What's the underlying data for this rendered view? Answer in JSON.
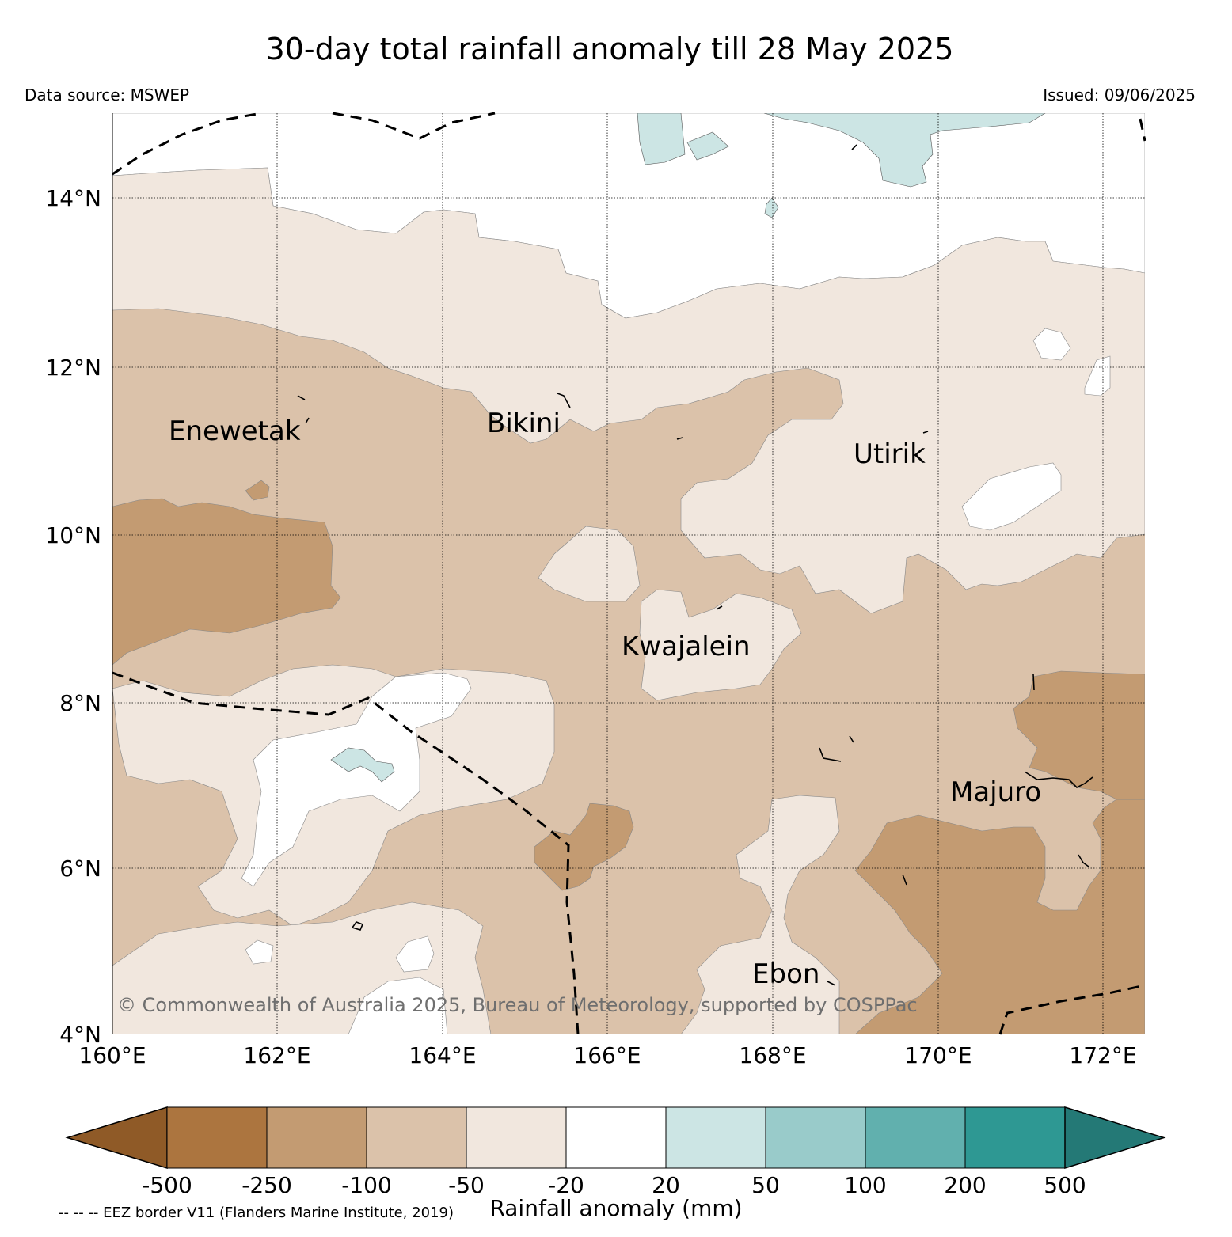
{
  "title": "30-day total rainfall anomaly till 28 May 2025",
  "data_source": "Data source: MSWEP",
  "issued": "Issued: 09/06/2025",
  "map": {
    "lat_labels": [
      "14°N",
      "12°N",
      "10°N",
      "8°N",
      "6°N",
      "4°N"
    ],
    "lon_labels": [
      "160°E",
      "162°E",
      "164°E",
      "166°E",
      "168°E",
      "170°E",
      "172°E"
    ],
    "places": [
      "Enewetak",
      "Bikini",
      "Utirik",
      "Kwajalein",
      "Majuro",
      "Ebon"
    ],
    "copyright": "© Commonwealth of Australia 2025, Bureau of Meteorology, supported by COSPPac"
  },
  "colorbar": {
    "label": "Rainfall anomaly (mm)",
    "ticks": [
      "-500",
      "-250",
      "-100",
      "-50",
      "-20",
      "20",
      "50",
      "100",
      "200",
      "500"
    ],
    "colors": [
      "#8f5a27",
      "#ac753f",
      "#c39b72",
      "#dbc2aa",
      "#f1e7de",
      "#ffffff",
      "#cce5e4",
      "#99cbca",
      "#61b0ae",
      "#2e9893",
      "#247976"
    ]
  },
  "eez_note": "-- -- -- EEZ border V11 (Flanders Marine Institute, 2019)"
}
